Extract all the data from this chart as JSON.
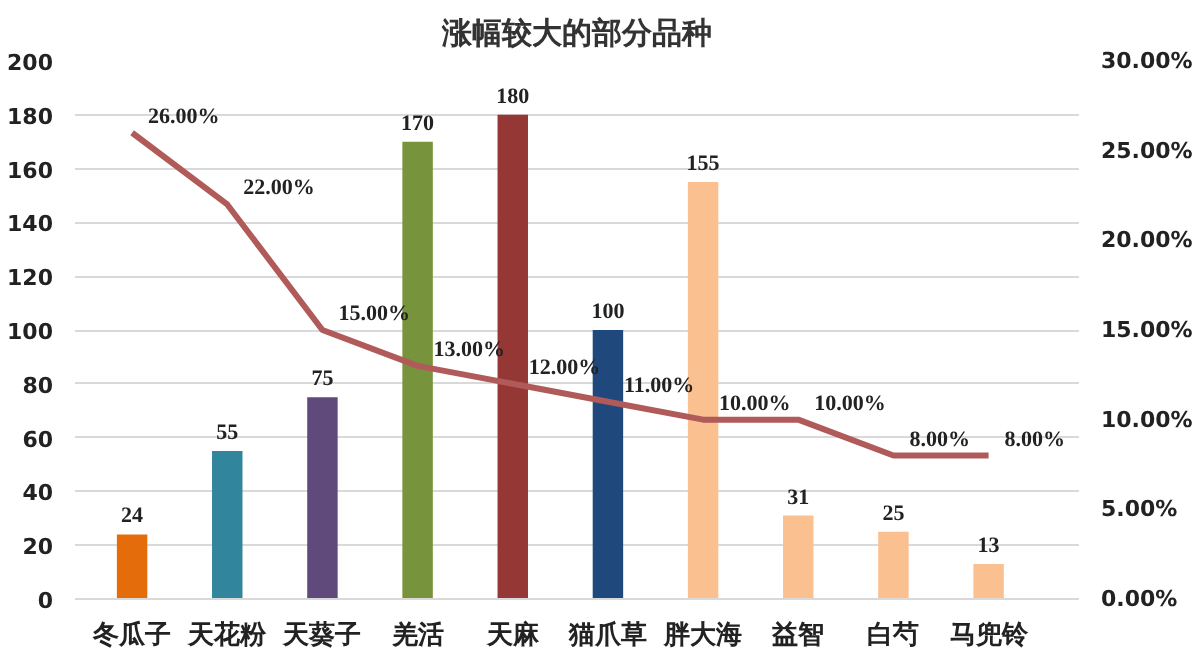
{
  "chart_data": {
    "type": "bar",
    "title": "涨幅较大的部分品种",
    "categories": [
      "冬瓜子",
      "天花粉",
      "天葵子",
      "羌活",
      "天麻",
      "猫爪草",
      "胖大海",
      "益智",
      "白芍",
      "马兜铃"
    ],
    "series": [
      {
        "colors": [
          "#e46c0a",
          "#31859c",
          "#604a7b",
          "#77933c",
          "#953735",
          "#1f497d",
          "#fac090",
          "#fac090",
          "#fac090",
          "#fac090"
        ],
        "values": [
          24,
          55,
          75,
          170,
          180,
          100,
          155,
          31,
          25,
          13
        ],
        "value_labels": [
          "24",
          "55",
          "75",
          "170",
          "180",
          "100",
          "155",
          "31",
          "25",
          "13"
        ]
      },
      {
        "type": "line",
        "axis": "y2",
        "color": "#b05a5a",
        "values": [
          26,
          22,
          15,
          13,
          12,
          11,
          10,
          10,
          8,
          8
        ],
        "value_labels": [
          "26.00%",
          "22.00%",
          "15.00%",
          "13.00%",
          "12.00%",
          "11.00%",
          "10.00%",
          "10.00%",
          "8.00%",
          "8.00%"
        ]
      }
    ],
    "ylim": [
      0,
      200
    ],
    "yticks": [
      0,
      20,
      40,
      60,
      80,
      100,
      120,
      140,
      160,
      180,
      200
    ],
    "y2lim": [
      0,
      30
    ],
    "y2ticks": [
      {
        "value": 0,
        "label": "0.00%"
      },
      {
        "value": 5,
        "label": "5.00%"
      },
      {
        "value": 10,
        "label": "10.00%"
      },
      {
        "value": 15,
        "label": "15.00%"
      },
      {
        "value": 20,
        "label": "20.00%"
      },
      {
        "value": 25,
        "label": "25.00%"
      },
      {
        "value": 30,
        "label": "30.00%"
      }
    ],
    "grid": "y",
    "marker": "none",
    "line_style": "solid"
  }
}
